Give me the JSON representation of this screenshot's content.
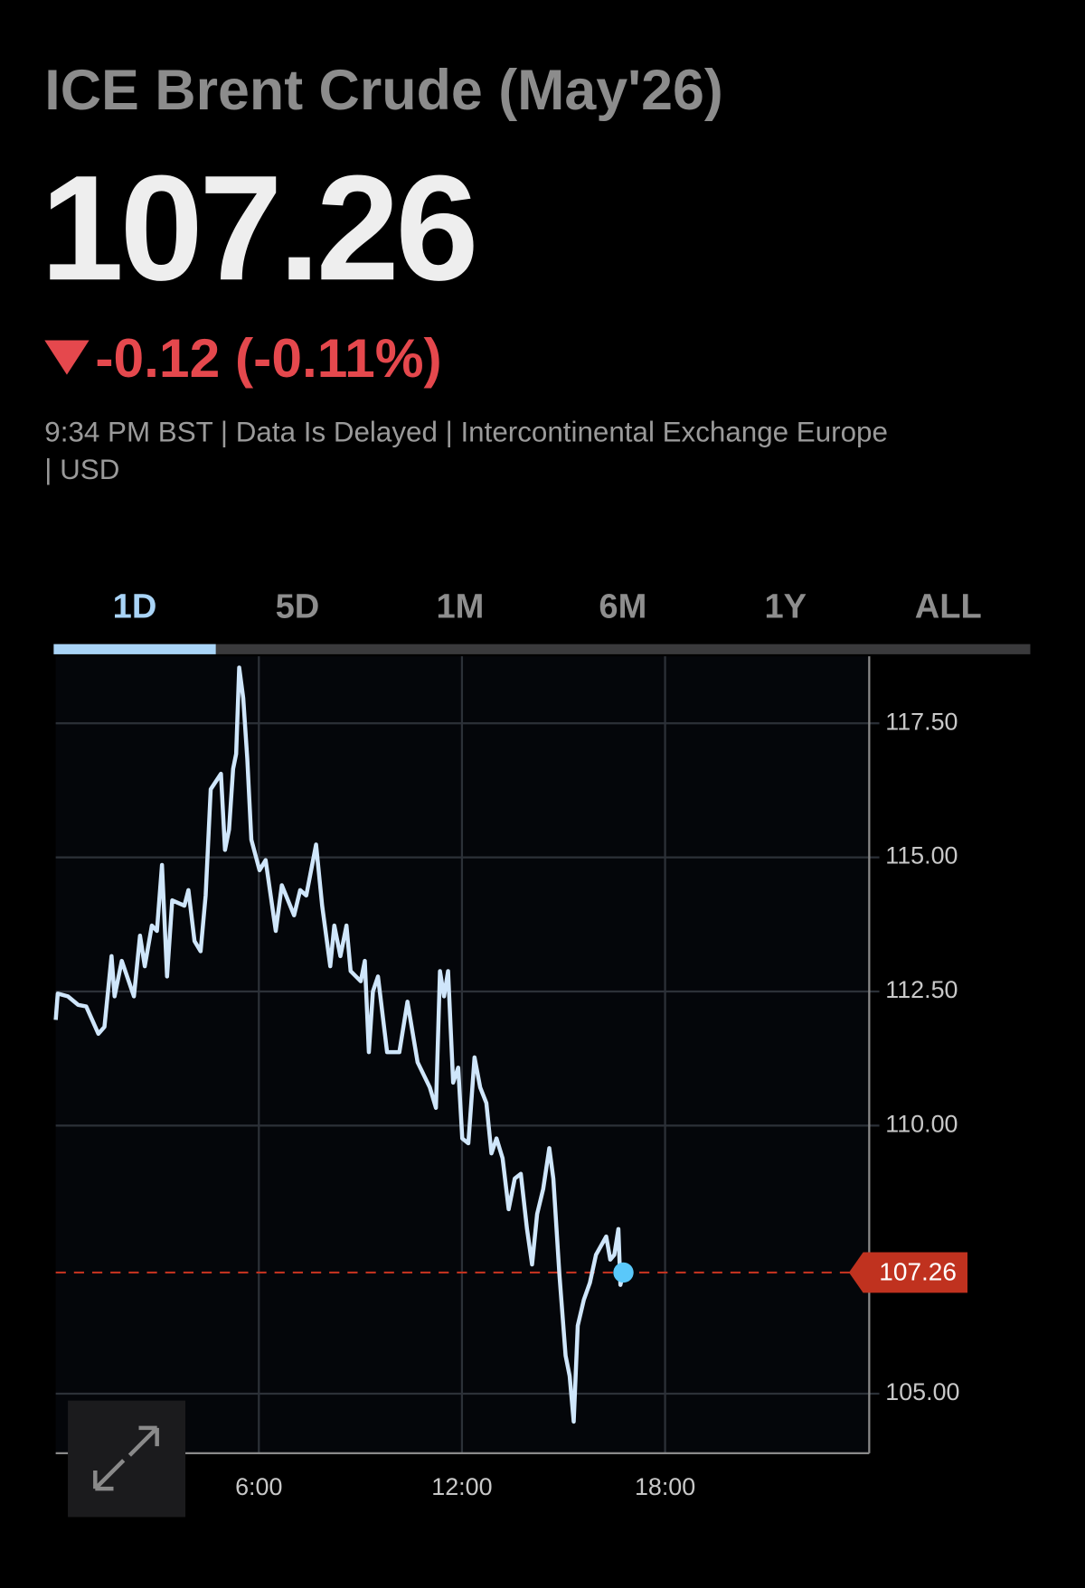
{
  "header": {
    "title": "ICE Brent Crude (May'26)",
    "price": "107.26",
    "change": "-0.12 (-0.11%)",
    "info_lines": [
      "9:34 PM BST | Data Is Delayed | Intercontinental Exchange Europe",
      "| USD"
    ]
  },
  "tabs": [
    "1D",
    "5D",
    "1M",
    "6M",
    "1Y",
    "ALL"
  ],
  "chart_data": {
    "type": "line",
    "color": "#cfe6fb",
    "marker_color": "#5ac8fa",
    "reference_color": "#c0321f",
    "x": [
      0.0,
      0.06,
      0.36,
      0.66,
      0.9,
      1.26,
      1.44,
      1.65,
      1.74,
      1.95,
      2.31,
      2.49,
      2.63,
      2.84,
      2.99,
      3.14,
      3.29,
      3.44,
      3.8,
      3.92,
      4.1,
      4.28,
      4.43,
      4.58,
      4.88,
      5.0,
      5.12,
      5.24,
      5.33,
      5.42,
      5.54,
      5.66,
      5.78,
      6.02,
      6.2,
      6.5,
      6.68,
      7.04,
      7.22,
      7.4,
      7.69,
      7.87,
      8.11,
      8.23,
      8.41,
      8.59,
      8.71,
      9.01,
      9.13,
      9.25,
      9.37,
      9.52,
      9.79,
      10.15,
      10.39,
      10.69,
      11.05,
      11.23,
      11.35,
      11.47,
      11.59,
      11.74,
      11.89,
      12.01,
      12.19,
      12.37,
      12.54,
      12.72,
      12.87,
      13.02,
      13.2,
      13.38,
      13.56,
      13.74,
      13.92,
      14.07,
      14.22,
      14.4,
      14.58,
      14.7,
      14.88,
      15.06,
      15.18,
      15.3,
      15.42,
      15.6,
      15.78,
      15.96,
      16.26,
      16.38,
      16.5,
      16.62,
      16.68,
      16.77
    ],
    "values": [
      111.97,
      112.46,
      112.41,
      112.25,
      112.22,
      111.71,
      111.84,
      113.16,
      112.41,
      113.07,
      112.41,
      113.54,
      112.97,
      113.73,
      113.63,
      114.86,
      112.78,
      114.2,
      114.1,
      114.39,
      113.44,
      113.25,
      114.29,
      116.27,
      116.56,
      115.14,
      115.52,
      116.65,
      116.93,
      118.54,
      117.97,
      116.84,
      115.33,
      114.76,
      114.95,
      113.63,
      114.48,
      113.92,
      114.39,
      114.29,
      115.24,
      114.1,
      112.97,
      113.73,
      113.16,
      113.73,
      112.88,
      112.69,
      113.07,
      111.37,
      112.5,
      112.78,
      111.37,
      111.37,
      112.31,
      111.18,
      110.71,
      110.33,
      112.88,
      112.41,
      112.88,
      110.8,
      111.08,
      109.76,
      109.67,
      111.27,
      110.71,
      110.42,
      109.48,
      109.76,
      109.39,
      108.44,
      109.01,
      109.1,
      108.07,
      107.41,
      108.35,
      108.82,
      109.58,
      109.01,
      107.22,
      105.71,
      105.33,
      104.48,
      106.27,
      106.75,
      107.07,
      107.59,
      107.93,
      107.5,
      107.59,
      108.07,
      107.03,
      107.26
    ],
    "last_value": 107.26,
    "xlim": [
      0,
      24
    ],
    "xticks": [
      {
        "value": 6,
        "label": "6:00"
      },
      {
        "value": 12,
        "label": "12:00"
      },
      {
        "value": 18,
        "label": "18:00"
      }
    ],
    "ylim": [
      103.89,
      118.75
    ],
    "yticks": [
      {
        "value": 105,
        "label": "105.00"
      },
      {
        "value": 110,
        "label": "110.00"
      },
      {
        "value": 112.5,
        "label": "112.50"
      },
      {
        "value": 115,
        "label": "115.00"
      },
      {
        "value": 117.5,
        "label": "117.50"
      }
    ],
    "grid": true
  }
}
